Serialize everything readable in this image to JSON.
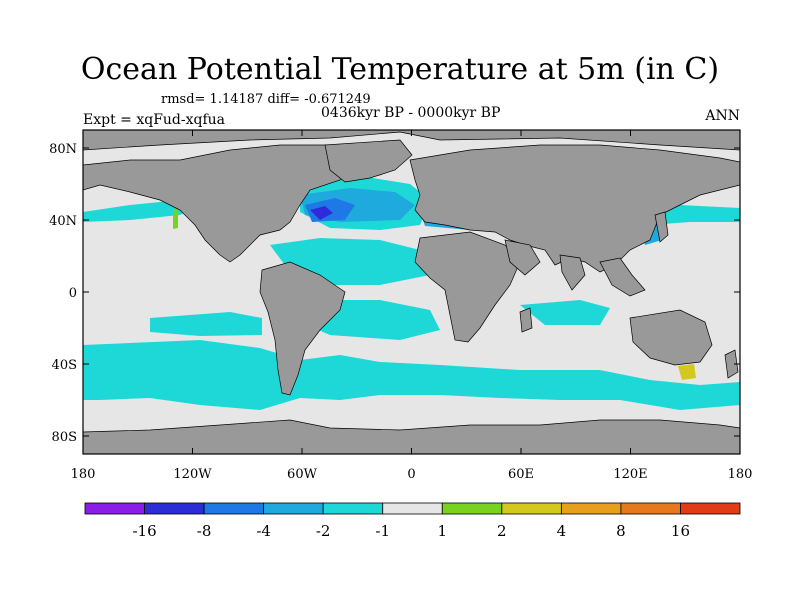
{
  "title": "Ocean Potential Temperature at 5m (in C)",
  "stats": "rmsd= 1.14187 diff= -0.671249",
  "period": "0436kyr BP - 0000kyr BP",
  "experiment": "Expt = xqFud-xqfua",
  "season": "ANN",
  "lat_ticks": [
    "80N",
    "40N",
    "0",
    "40S",
    "80S"
  ],
  "lon_ticks": [
    "180",
    "120W",
    "60W",
    "0",
    "60E",
    "120E",
    "180"
  ],
  "colorbar": {
    "labels": [
      "-16",
      "-8",
      "-4",
      "-2",
      "-1",
      "1",
      "2",
      "4",
      "8",
      "16"
    ],
    "colors": [
      "#8a1ee6",
      "#2d2dd8",
      "#1e78e6",
      "#1eaadc",
      "#1ed8d8",
      "#e6e6e6",
      "#78d21e",
      "#d2c81e",
      "#e6a01e",
      "#e6781e",
      "#e13c14"
    ]
  },
  "colors": {
    "land": "#999999",
    "ocean_neutral": "#e6e6e6",
    "cool_minus1": "#1ed8d8",
    "cool_minus2": "#1eaadc",
    "cool_minus4": "#1e78e6",
    "cool_minus8": "#2d2dd8",
    "warm_1": "#78d21e",
    "warm_2": "#d2c81e"
  }
}
